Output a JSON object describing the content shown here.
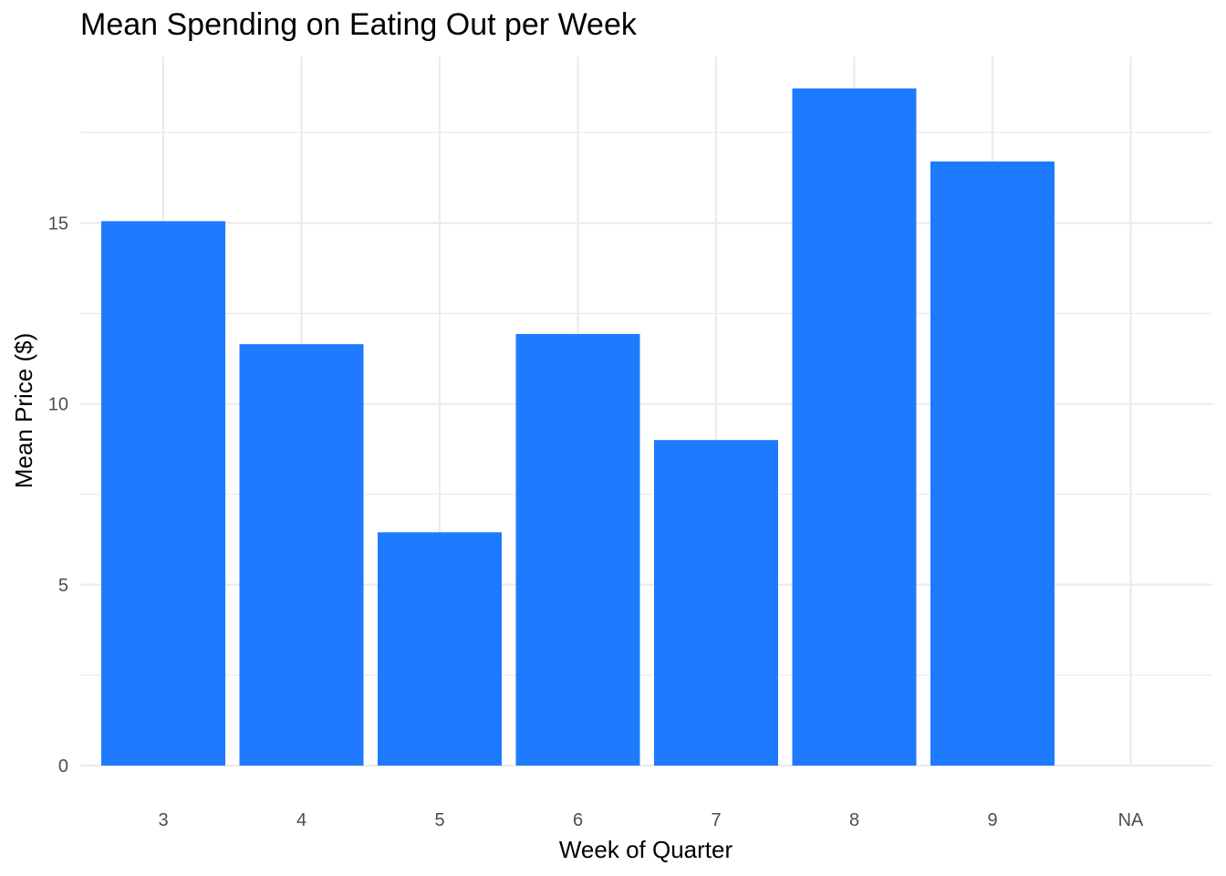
{
  "chart_data": {
    "type": "bar",
    "title": "Mean Spending on Eating Out per Week",
    "xlabel": "Week of Quarter",
    "ylabel": "Mean Price ($)",
    "categories": [
      "3",
      "4",
      "5",
      "6",
      "7",
      "8",
      "9",
      "NA"
    ],
    "values": [
      15.05,
      11.65,
      6.45,
      11.93,
      9.0,
      18.72,
      16.7,
      null
    ],
    "ylim": [
      0,
      19.6
    ],
    "yticks": [
      0,
      5,
      10,
      15
    ],
    "grid": true,
    "bar_color": "#1E7BFF",
    "grid_color": "#EBEBEB"
  }
}
